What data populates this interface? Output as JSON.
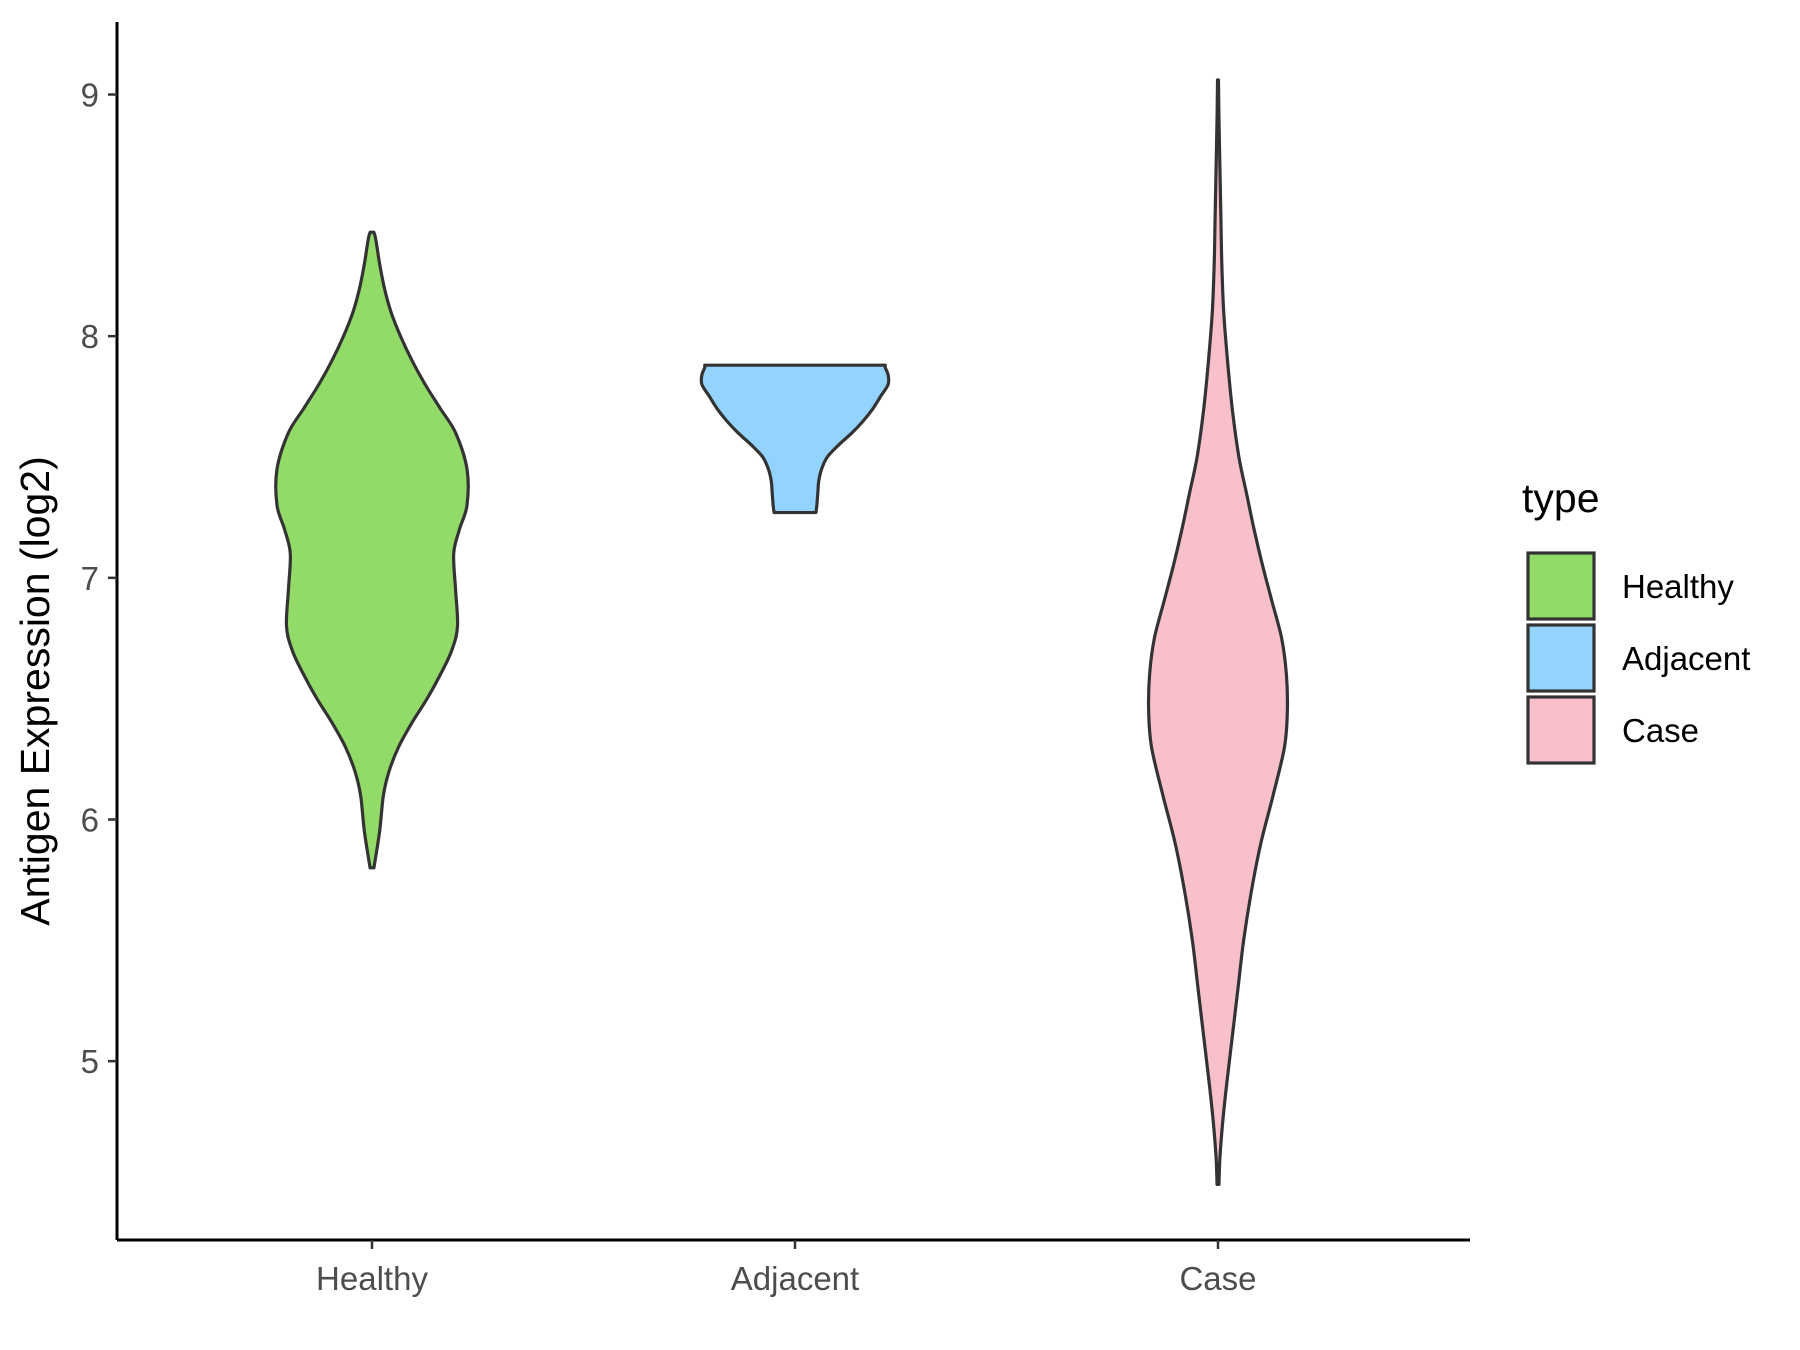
{
  "chart_data": {
    "type": "violin",
    "ylabel": "Antigen Expression (log2)",
    "xlabel": "",
    "ylim": [
      4.26,
      9.3
    ],
    "yticks": [
      5,
      6,
      7,
      8,
      9
    ],
    "categories": [
      "Healthy",
      "Adjacent",
      "Case"
    ],
    "legend": {
      "title": "type",
      "position": "right",
      "entries": [
        "Healthy",
        "Adjacent",
        "Case"
      ]
    },
    "grid": false,
    "series": [
      {
        "category": "Healthy",
        "color": "#93DB69",
        "min": 5.8,
        "max": 8.43,
        "profile": [
          [
            5.8,
            0.02
          ],
          [
            5.95,
            0.08
          ],
          [
            6.1,
            0.12
          ],
          [
            6.2,
            0.18
          ],
          [
            6.3,
            0.28
          ],
          [
            6.4,
            0.42
          ],
          [
            6.5,
            0.58
          ],
          [
            6.6,
            0.72
          ],
          [
            6.7,
            0.84
          ],
          [
            6.8,
            0.9
          ],
          [
            6.95,
            0.88
          ],
          [
            7.1,
            0.86
          ],
          [
            7.2,
            0.92
          ],
          [
            7.3,
            1.0
          ],
          [
            7.45,
            1.0
          ],
          [
            7.6,
            0.88
          ],
          [
            7.7,
            0.72
          ],
          [
            7.8,
            0.56
          ],
          [
            7.9,
            0.42
          ],
          [
            8.0,
            0.3
          ],
          [
            8.1,
            0.2
          ],
          [
            8.2,
            0.13
          ],
          [
            8.3,
            0.08
          ],
          [
            8.4,
            0.04
          ],
          [
            8.43,
            0.02
          ]
        ]
      },
      {
        "category": "Adjacent",
        "color": "#92D3FF",
        "min": 7.27,
        "max": 7.88,
        "profile": [
          [
            7.27,
            0.22
          ],
          [
            7.3,
            0.23
          ],
          [
            7.35,
            0.24
          ],
          [
            7.4,
            0.25
          ],
          [
            7.45,
            0.28
          ],
          [
            7.5,
            0.34
          ],
          [
            7.55,
            0.46
          ],
          [
            7.6,
            0.6
          ],
          [
            7.65,
            0.72
          ],
          [
            7.7,
            0.82
          ],
          [
            7.75,
            0.9
          ],
          [
            7.8,
            0.98
          ],
          [
            7.84,
            0.98
          ],
          [
            7.87,
            0.95
          ],
          [
            7.88,
            0.95
          ]
        ]
      },
      {
        "category": "Case",
        "color": "#F7C0CB",
        "min": 4.49,
        "max": 9.06,
        "profile": [
          [
            4.49,
            0.01
          ],
          [
            4.6,
            0.02
          ],
          [
            4.75,
            0.05
          ],
          [
            4.9,
            0.09
          ],
          [
            5.1,
            0.15
          ],
          [
            5.3,
            0.21
          ],
          [
            5.5,
            0.27
          ],
          [
            5.7,
            0.35
          ],
          [
            5.9,
            0.45
          ],
          [
            6.1,
            0.58
          ],
          [
            6.3,
            0.7
          ],
          [
            6.45,
            0.73
          ],
          [
            6.6,
            0.72
          ],
          [
            6.75,
            0.67
          ],
          [
            6.9,
            0.57
          ],
          [
            7.05,
            0.47
          ],
          [
            7.2,
            0.38
          ],
          [
            7.35,
            0.3
          ],
          [
            7.5,
            0.22
          ],
          [
            7.7,
            0.15
          ],
          [
            7.9,
            0.1
          ],
          [
            8.1,
            0.06
          ],
          [
            8.3,
            0.04
          ],
          [
            8.5,
            0.03
          ],
          [
            8.7,
            0.02
          ],
          [
            8.9,
            0.01
          ],
          [
            9.06,
            0.005
          ]
        ]
      }
    ]
  }
}
